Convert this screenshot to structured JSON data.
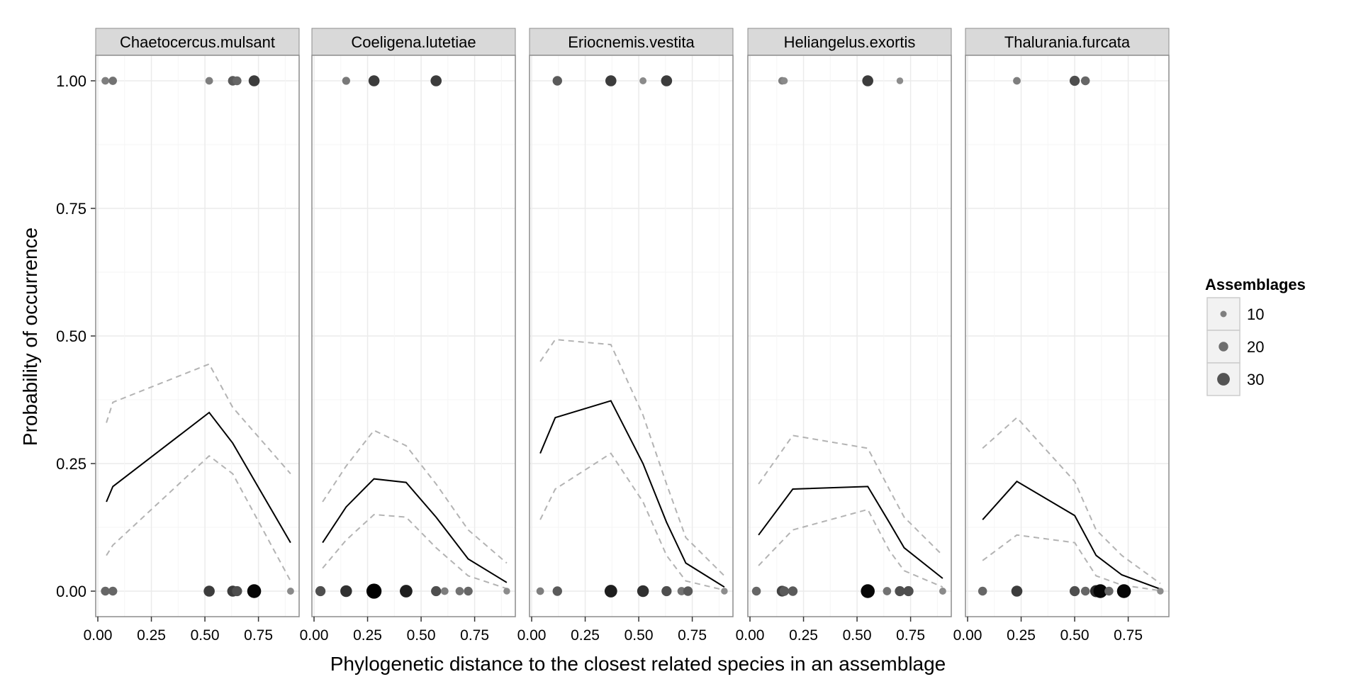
{
  "chart_data": {
    "type": "scatter",
    "xlabel": "Phylogenetic distance to the closest related species in an assemblage",
    "ylabel": "Probability of occurrence",
    "xlim": [
      -0.01,
      0.94
    ],
    "ylim": [
      -0.05,
      1.05
    ],
    "x_ticks": [
      0.0,
      0.25,
      0.5,
      0.75
    ],
    "x_tick_labels": [
      "0.00",
      "0.25",
      "0.50",
      "0.75"
    ],
    "y_ticks": [
      0.0,
      0.25,
      0.5,
      0.75,
      1.0
    ],
    "y_tick_labels": [
      "0.00",
      "0.25",
      "0.50",
      "0.75",
      "1.00"
    ],
    "grid": true,
    "legend": {
      "title": "Assemblages",
      "position": "right",
      "entries": [
        {
          "label": "10",
          "size": 10
        },
        {
          "label": "20",
          "size": 20
        },
        {
          "label": "30",
          "size": 30
        }
      ]
    },
    "colors": {
      "panel_bg": "#ffffff",
      "strip_bg": "#d9d9d9",
      "grid": "#ebebeb",
      "fit_line": "#000000",
      "ci_line": "#b3b3b3"
    },
    "panels": [
      {
        "title": "Chaetocercus.mulsant",
        "fit": [
          [
            0.04,
            0.175
          ],
          [
            0.07,
            0.205
          ],
          [
            0.52,
            0.35
          ],
          [
            0.63,
            0.29
          ],
          [
            0.9,
            0.095
          ]
        ],
        "ci_upper": [
          [
            0.04,
            0.33
          ],
          [
            0.07,
            0.37
          ],
          [
            0.52,
            0.445
          ],
          [
            0.63,
            0.36
          ],
          [
            0.9,
            0.23
          ]
        ],
        "ci_lower": [
          [
            0.04,
            0.07
          ],
          [
            0.07,
            0.09
          ],
          [
            0.52,
            0.265
          ],
          [
            0.63,
            0.23
          ],
          [
            0.9,
            0.02
          ]
        ],
        "points": [
          {
            "x": 0.035,
            "y": 1.0,
            "n": 14
          },
          {
            "x": 0.07,
            "y": 1.0,
            "n": 16
          },
          {
            "x": 0.52,
            "y": 1.0,
            "n": 14
          },
          {
            "x": 0.63,
            "y": 1.0,
            "n": 20
          },
          {
            "x": 0.65,
            "y": 1.0,
            "n": 18
          },
          {
            "x": 0.73,
            "y": 1.0,
            "n": 25
          },
          {
            "x": 0.035,
            "y": 0.0,
            "n": 18
          },
          {
            "x": 0.07,
            "y": 0.0,
            "n": 18
          },
          {
            "x": 0.52,
            "y": 0.0,
            "n": 25
          },
          {
            "x": 0.63,
            "y": 0.0,
            "n": 25
          },
          {
            "x": 0.65,
            "y": 0.0,
            "n": 22
          },
          {
            "x": 0.73,
            "y": 0.0,
            "n": 34
          },
          {
            "x": 0.9,
            "y": 0.0,
            "n": 12
          }
        ]
      },
      {
        "title": "Coeligena.lutetiae",
        "fit": [
          [
            0.04,
            0.095
          ],
          [
            0.15,
            0.165
          ],
          [
            0.28,
            0.22
          ],
          [
            0.43,
            0.213
          ],
          [
            0.57,
            0.145
          ],
          [
            0.72,
            0.063
          ],
          [
            0.9,
            0.017
          ]
        ],
        "ci_upper": [
          [
            0.04,
            0.175
          ],
          [
            0.15,
            0.245
          ],
          [
            0.28,
            0.315
          ],
          [
            0.43,
            0.285
          ],
          [
            0.57,
            0.21
          ],
          [
            0.72,
            0.12
          ],
          [
            0.9,
            0.055
          ]
        ],
        "ci_lower": [
          [
            0.04,
            0.045
          ],
          [
            0.15,
            0.1
          ],
          [
            0.28,
            0.15
          ],
          [
            0.43,
            0.145
          ],
          [
            0.57,
            0.085
          ],
          [
            0.72,
            0.03
          ],
          [
            0.9,
            0.005
          ]
        ],
        "points": [
          {
            "x": 0.15,
            "y": 1.0,
            "n": 15
          },
          {
            "x": 0.28,
            "y": 1.0,
            "n": 25
          },
          {
            "x": 0.57,
            "y": 1.0,
            "n": 25
          },
          {
            "x": 0.03,
            "y": 0.0,
            "n": 22
          },
          {
            "x": 0.15,
            "y": 0.0,
            "n": 27
          },
          {
            "x": 0.28,
            "y": 0.0,
            "n": 38
          },
          {
            "x": 0.43,
            "y": 0.0,
            "n": 30
          },
          {
            "x": 0.57,
            "y": 0.0,
            "n": 22
          },
          {
            "x": 0.61,
            "y": 0.0,
            "n": 14
          },
          {
            "x": 0.68,
            "y": 0.0,
            "n": 16
          },
          {
            "x": 0.72,
            "y": 0.0,
            "n": 18
          },
          {
            "x": 0.9,
            "y": 0.0,
            "n": 11
          }
        ]
      },
      {
        "title": "Eriocnemis.vestita",
        "fit": [
          [
            0.04,
            0.27
          ],
          [
            0.11,
            0.34
          ],
          [
            0.37,
            0.373
          ],
          [
            0.52,
            0.25
          ],
          [
            0.63,
            0.135
          ],
          [
            0.72,
            0.055
          ],
          [
            0.9,
            0.008
          ]
        ],
        "ci_upper": [
          [
            0.04,
            0.45
          ],
          [
            0.11,
            0.493
          ],
          [
            0.37,
            0.483
          ],
          [
            0.52,
            0.345
          ],
          [
            0.63,
            0.21
          ],
          [
            0.72,
            0.105
          ],
          [
            0.9,
            0.03
          ]
        ],
        "ci_lower": [
          [
            0.04,
            0.14
          ],
          [
            0.11,
            0.2
          ],
          [
            0.37,
            0.27
          ],
          [
            0.52,
            0.175
          ],
          [
            0.63,
            0.07
          ],
          [
            0.72,
            0.02
          ],
          [
            0.9,
            0.002
          ]
        ],
        "points": [
          {
            "x": 0.12,
            "y": 1.0,
            "n": 20
          },
          {
            "x": 0.37,
            "y": 1.0,
            "n": 25
          },
          {
            "x": 0.52,
            "y": 1.0,
            "n": 12
          },
          {
            "x": 0.63,
            "y": 1.0,
            "n": 25
          },
          {
            "x": 0.04,
            "y": 0.0,
            "n": 14
          },
          {
            "x": 0.12,
            "y": 0.0,
            "n": 20
          },
          {
            "x": 0.37,
            "y": 0.0,
            "n": 30
          },
          {
            "x": 0.52,
            "y": 0.0,
            "n": 27
          },
          {
            "x": 0.63,
            "y": 0.0,
            "n": 22
          },
          {
            "x": 0.7,
            "y": 0.0,
            "n": 16
          },
          {
            "x": 0.73,
            "y": 0.0,
            "n": 20
          },
          {
            "x": 0.9,
            "y": 0.0,
            "n": 11
          }
        ]
      },
      {
        "title": "Heliangelus.exortis",
        "fit": [
          [
            0.04,
            0.11
          ],
          [
            0.2,
            0.2
          ],
          [
            0.55,
            0.205
          ],
          [
            0.65,
            0.135
          ],
          [
            0.72,
            0.085
          ],
          [
            0.9,
            0.025
          ]
        ],
        "ci_upper": [
          [
            0.04,
            0.21
          ],
          [
            0.2,
            0.305
          ],
          [
            0.55,
            0.28
          ],
          [
            0.65,
            0.2
          ],
          [
            0.72,
            0.145
          ],
          [
            0.9,
            0.07
          ]
        ],
        "ci_lower": [
          [
            0.04,
            0.05
          ],
          [
            0.2,
            0.12
          ],
          [
            0.55,
            0.16
          ],
          [
            0.65,
            0.08
          ],
          [
            0.72,
            0.04
          ],
          [
            0.9,
            0.008
          ]
        ],
        "points": [
          {
            "x": 0.15,
            "y": 1.0,
            "n": 14
          },
          {
            "x": 0.16,
            "y": 1.0,
            "n": 12
          },
          {
            "x": 0.55,
            "y": 1.0,
            "n": 25
          },
          {
            "x": 0.7,
            "y": 1.0,
            "n": 11
          },
          {
            "x": 0.03,
            "y": 0.0,
            "n": 18
          },
          {
            "x": 0.15,
            "y": 0.0,
            "n": 24
          },
          {
            "x": 0.16,
            "y": 0.0,
            "n": 20
          },
          {
            "x": 0.2,
            "y": 0.0,
            "n": 20
          },
          {
            "x": 0.55,
            "y": 0.0,
            "n": 34
          },
          {
            "x": 0.64,
            "y": 0.0,
            "n": 16
          },
          {
            "x": 0.7,
            "y": 0.0,
            "n": 22
          },
          {
            "x": 0.74,
            "y": 0.0,
            "n": 22
          },
          {
            "x": 0.9,
            "y": 0.0,
            "n": 12
          }
        ]
      },
      {
        "title": "Thalurania.furcata",
        "fit": [
          [
            0.07,
            0.14
          ],
          [
            0.23,
            0.215
          ],
          [
            0.5,
            0.148
          ],
          [
            0.6,
            0.07
          ],
          [
            0.72,
            0.032
          ],
          [
            0.9,
            0.004
          ]
        ],
        "ci_upper": [
          [
            0.07,
            0.28
          ],
          [
            0.23,
            0.34
          ],
          [
            0.5,
            0.215
          ],
          [
            0.6,
            0.12
          ],
          [
            0.72,
            0.07
          ],
          [
            0.9,
            0.015
          ]
        ],
        "ci_lower": [
          [
            0.07,
            0.06
          ],
          [
            0.23,
            0.11
          ],
          [
            0.5,
            0.095
          ],
          [
            0.6,
            0.03
          ],
          [
            0.72,
            0.012
          ],
          [
            0.9,
            0.001
          ]
        ],
        "points": [
          {
            "x": 0.23,
            "y": 1.0,
            "n": 14
          },
          {
            "x": 0.5,
            "y": 1.0,
            "n": 22
          },
          {
            "x": 0.55,
            "y": 1.0,
            "n": 18
          },
          {
            "x": 0.07,
            "y": 0.0,
            "n": 18
          },
          {
            "x": 0.23,
            "y": 0.0,
            "n": 25
          },
          {
            "x": 0.5,
            "y": 0.0,
            "n": 22
          },
          {
            "x": 0.55,
            "y": 0.0,
            "n": 18
          },
          {
            "x": 0.6,
            "y": 0.0,
            "n": 28
          },
          {
            "x": 0.62,
            "y": 0.0,
            "n": 34
          },
          {
            "x": 0.66,
            "y": 0.0,
            "n": 18
          },
          {
            "x": 0.73,
            "y": 0.0,
            "n": 34
          },
          {
            "x": 0.9,
            "y": 0.0,
            "n": 11
          }
        ]
      }
    ]
  }
}
